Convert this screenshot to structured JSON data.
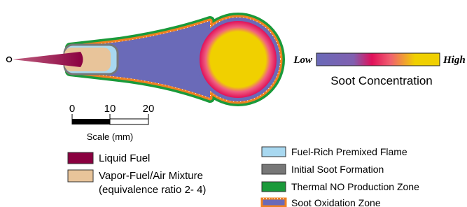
{
  "colorbar": {
    "low": "Low",
    "high": "High",
    "title": "Soot Concentration"
  },
  "scale": {
    "ticks": [
      0,
      10,
      20
    ],
    "label": "Scale (mm)"
  },
  "legend_left": [
    {
      "label": "Liquid Fuel"
    },
    {
      "label": "Vapor-Fuel/Air Mixture",
      "note": "(equivalence ratio 2- 4)"
    }
  ],
  "legend_right": [
    "Fuel-Rich Premixed Flame",
    "Initial Soot Formation",
    "Thermal NO Production Zone",
    "Soot Oxidation Zone"
  ]
}
